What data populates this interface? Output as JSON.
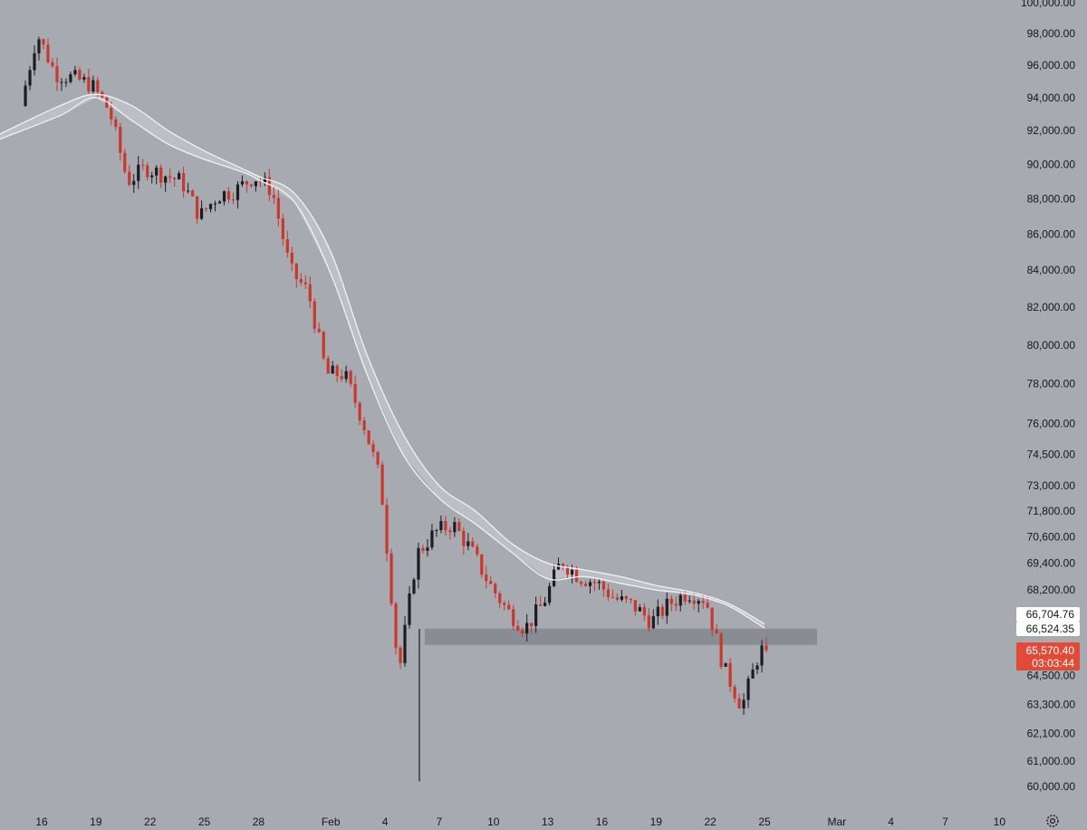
{
  "colors": {
    "background": "#a8aab2",
    "up_candle": "#1c1d21",
    "down_candle": "#c8382d",
    "moving_average": "#f2f2f2",
    "band_fill": "#c4c6cc",
    "zone": "#8a8c93",
    "label_text": "#16171b",
    "tag_bg": "#ffffff",
    "current_tag_bg": "#e04a36"
  },
  "icons": {
    "settings": "gear-icon"
  },
  "price_tags": {
    "ma_upper": "66,704.76",
    "ma_lower": "66,524.35",
    "last_price": "65,570.40",
    "countdown": "03:03:44"
  },
  "chart_data": {
    "type": "candlestick",
    "y_ticks": [
      "100,000.00",
      "98,000.00",
      "96,000.00",
      "94,000.00",
      "92,000.00",
      "90,000.00",
      "88,000.00",
      "86,000.00",
      "84,000.00",
      "82,000.00",
      "80,000.00",
      "78,000.00",
      "76,000.00",
      "74,500.00",
      "73,000.00",
      "71,800.00",
      "70,600.00",
      "69,400.00",
      "68,200.00",
      "64,500.00",
      "63,300.00",
      "62,100.00",
      "61,000.00",
      "60,000.00"
    ],
    "x_ticks": [
      "16",
      "19",
      "22",
      "25",
      "28",
      "Feb",
      "4",
      "7",
      "10",
      "13",
      "16",
      "19",
      "22",
      "25",
      "Mar",
      "4",
      "7",
      "10"
    ],
    "resistance_zone": [
      65800,
      66500
    ],
    "price_path": [
      [
        "Jan 15",
        93000
      ],
      [
        "Jan 16",
        98000
      ],
      [
        "Jan 17",
        95500
      ],
      [
        "Jan 18",
        95200
      ],
      [
        "Jan 19",
        94800
      ],
      [
        "Jan 20",
        93200
      ],
      [
        "Jan 21",
        89000
      ],
      [
        "Jan 22",
        89800
      ],
      [
        "Jan 23",
        89400
      ],
      [
        "Jan 24",
        89000
      ],
      [
        "Jan 25",
        87000
      ],
      [
        "Jan 26",
        88200
      ],
      [
        "Jan 27",
        88500
      ],
      [
        "Jan 28",
        89300
      ],
      [
        "Jan 29",
        88500
      ],
      [
        "Jan 30",
        84000
      ],
      [
        "Jan 31",
        82800
      ],
      [
        "Feb 1",
        78500
      ],
      [
        "Feb 2",
        78500
      ],
      [
        "Feb 3",
        76200
      ],
      [
        "Feb 4",
        73200
      ],
      [
        "Feb 5",
        64500
      ],
      [
        "Feb 6",
        69800
      ],
      [
        "Feb 7",
        70800
      ],
      [
        "Feb 8",
        71200
      ],
      [
        "Feb 9",
        70000
      ],
      [
        "Feb 10",
        68500
      ],
      [
        "Feb 11",
        67300
      ],
      [
        "Feb 12",
        66500
      ],
      [
        "Feb 13",
        67600
      ],
      [
        "Feb 14",
        69500
      ],
      [
        "Feb 15",
        68800
      ],
      [
        "Feb 16",
        68500
      ],
      [
        "Feb 17",
        67800
      ],
      [
        "Feb 18",
        67500
      ],
      [
        "Feb 19",
        66800
      ],
      [
        "Feb 20",
        67600
      ],
      [
        "Feb 21",
        68100
      ],
      [
        "Feb 22",
        67800
      ],
      [
        "Feb 23",
        64800
      ],
      [
        "Feb 24",
        63200
      ],
      [
        "Feb 25",
        65570.4
      ]
    ],
    "moving_averages": {
      "upper": [
        [
          "Jan 15",
          91800
        ],
        [
          "Jan 17",
          93500
        ],
        [
          "Jan 19",
          94200
        ],
        [
          "Jan 21",
          93500
        ],
        [
          "Jan 23",
          92000
        ],
        [
          "Jan 25",
          90800
        ],
        [
          "Jan 27",
          89800
        ],
        [
          "Jan 28",
          89300
        ],
        [
          "Jan 30",
          88300
        ],
        [
          "Feb 1",
          85000
        ],
        [
          "Feb 3",
          79500
        ],
        [
          "Feb 5",
          75500
        ],
        [
          "Feb 7",
          73000
        ],
        [
          "Feb 9",
          71800
        ],
        [
          "Feb 11",
          70300
        ],
        [
          "Feb 13",
          69400
        ],
        [
          "Feb 15",
          69100
        ],
        [
          "Feb 17",
          68800
        ],
        [
          "Feb 19",
          68400
        ],
        [
          "Feb 21",
          68100
        ],
        [
          "Feb 23",
          67600
        ],
        [
          "Feb 25",
          66704.76
        ]
      ],
      "lower": [
        [
          "Jan 15",
          91500
        ],
        [
          "Jan 17",
          92900
        ],
        [
          "Jan 19",
          94000
        ],
        [
          "Jan 21",
          92600
        ],
        [
          "Jan 23",
          91200
        ],
        [
          "Jan 25",
          90300
        ],
        [
          "Jan 27",
          89600
        ],
        [
          "Jan 28",
          89100
        ],
        [
          "Jan 30",
          87800
        ],
        [
          "Feb 1",
          83800
        ],
        [
          "Feb 3",
          78500
        ],
        [
          "Feb 5",
          74500
        ],
        [
          "Feb 7",
          72400
        ],
        [
          "Feb 9",
          71200
        ],
        [
          "Feb 11",
          69900
        ],
        [
          "Feb 13",
          68700
        ],
        [
          "Feb 15",
          68800
        ],
        [
          "Feb 17",
          68500
        ],
        [
          "Feb 19",
          68200
        ],
        [
          "Feb 21",
          68000
        ],
        [
          "Feb 23",
          67500
        ],
        [
          "Feb 25",
          66524.35
        ]
      ]
    },
    "grid": false,
    "legend": "none"
  }
}
